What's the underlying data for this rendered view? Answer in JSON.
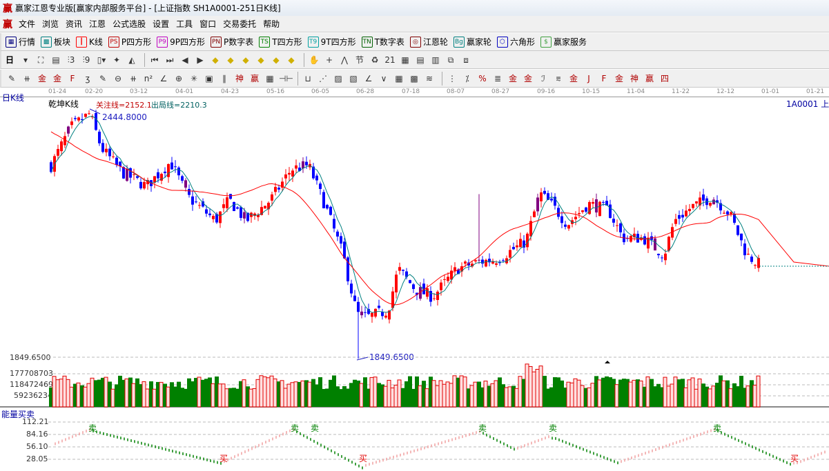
{
  "window": {
    "title": "赢家江恩专业版[赢家内部服务平台] - [上证指数  SH1A0001-251日K线]",
    "logo": "赢"
  },
  "menu": [
    "文件",
    "浏览",
    "资讯",
    "江恩",
    "公式选股",
    "设置",
    "工具",
    "窗口",
    "交易委托",
    "帮助"
  ],
  "toolbar1": [
    {
      "icon": "▦",
      "label": "行情",
      "color": "#000080"
    },
    {
      "icon": "▩",
      "label": "板块",
      "color": "#008080"
    },
    {
      "icon": "┃",
      "label": "K线",
      "color": "#ff0000"
    },
    {
      "icon": "PS",
      "label": "P四方形",
      "color": "#c00000"
    },
    {
      "icon": "P9",
      "label": "9P四方形",
      "color": "#c000c0"
    },
    {
      "icon": "PN",
      "label": "P数字表",
      "color": "#800000"
    },
    {
      "icon": "TS",
      "label": "T四方形",
      "color": "#008000"
    },
    {
      "icon": "T9",
      "label": "9T四方形",
      "color": "#00a0a0"
    },
    {
      "icon": "TN",
      "label": "T数字表",
      "color": "#006000"
    },
    {
      "icon": "◎",
      "label": "江恩轮",
      "color": "#800000"
    },
    {
      "icon": "Bg",
      "label": "赢家轮",
      "color": "#008080"
    },
    {
      "icon": "⬡",
      "label": "六角形",
      "color": "#0000c0"
    },
    {
      "icon": "$",
      "label": "赢家服务",
      "color": "#40a040"
    }
  ],
  "toolbar2": {
    "period": "日",
    "icons": [
      "▾",
      "⛶",
      "▤",
      "⫶3",
      "⫶9",
      "▯▾",
      "✦",
      "◭",
      "⏮",
      "⏭",
      "◀",
      "▶",
      "◆",
      "◆",
      "◆",
      "◆",
      "◆",
      "◆",
      "✋",
      "+",
      "⋀",
      "节",
      "♻",
      "21",
      "▦",
      "▤",
      "▥",
      "⧉",
      "⧈"
    ]
  },
  "toolbar3": {
    "icons": [
      "✎",
      "⧺",
      "金",
      "金",
      "F",
      "ʒ",
      "✎",
      "⊖",
      "⧺",
      "n²",
      "∠",
      "⊕",
      "✳",
      "▣",
      "∥",
      "神",
      "赢",
      "▦",
      "⊣⊢",
      "⊔",
      "⋰",
      "▨",
      "▧",
      "∠",
      "∨",
      "▦",
      "▩",
      "≋",
      "⋮",
      "⁒",
      "%",
      "≣",
      "金",
      "金",
      "ℐ",
      "⩳",
      "金",
      "J",
      "F",
      "金",
      "神",
      "赢",
      "四"
    ]
  },
  "date_axis": [
    "01-24",
    "02-20",
    "03-12",
    "04-01",
    "04-23",
    "05-16",
    "06-05",
    "06-28",
    "07-18",
    "08-07",
    "08-27",
    "09-16",
    "10-15",
    "11-04",
    "11-22",
    "12-12",
    "01-01",
    "01-21"
  ],
  "chart": {
    "period_label": "日K线",
    "indicator_name": "乾坤K线",
    "watch_line": "关注线=2152.1",
    "exit_line": "出局线=2210.3",
    "code": "1A0001",
    "code_suffix": "上",
    "high_label": "2444.8000",
    "low_label": "1849.6500",
    "up_color": "#ff0000",
    "down_color": "#0000ff",
    "ma_short_color": "#008080",
    "ma_long_color": "#ff0000"
  },
  "chart_data": {
    "type": "candlestick",
    "price_high": 2444.8,
    "price_low": 1849.65,
    "close_path": [
      2312,
      2403,
      2437,
      2354,
      2296,
      2263,
      2321,
      2238,
      2180,
      2230,
      2180,
      2230,
      2304,
      2313,
      2213,
      2098,
      1957,
      1949,
      1965,
      2065,
      2015,
      1998,
      2065,
      2081,
      2089,
      2131,
      2246,
      2213,
      2172,
      2221,
      2205,
      2139,
      2139,
      2098,
      2180,
      2213,
      2238,
      2197,
      2098,
      2073
    ],
    "volume_ticks": [
      "177708703",
      "118472469",
      "59236234"
    ],
    "oscillator": {
      "name": "能量买卖",
      "ticks": [
        "112.21",
        "84.16",
        "56.10",
        "28.05"
      ],
      "sell_label": "卖",
      "buy_label": "买",
      "sell_signals": 6,
      "buy_signals": 3
    }
  }
}
